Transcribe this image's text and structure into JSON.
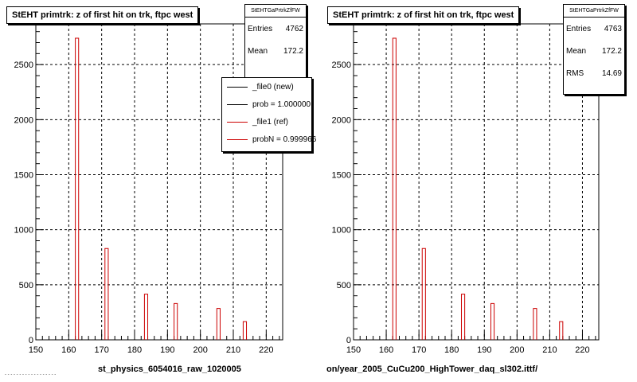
{
  "chart_data": [
    {
      "type": "bar",
      "title": "StEHT primtrk: z of first hit on trk, ftpc west",
      "xlabel": "st_physics_6054016_raw_1020005",
      "ylabel": "",
      "xlim": [
        150,
        225
      ],
      "ylim": [
        0,
        2870
      ],
      "xticks": [
        150,
        160,
        170,
        180,
        190,
        200,
        210,
        220
      ],
      "yticks": [
        0,
        500,
        1000,
        1500,
        2000,
        2500
      ],
      "grid": true,
      "series": [
        {
          "name": "_file1 (ref)",
          "color": "#cc0000",
          "x": [
            162.5,
            171.5,
            183.5,
            192.5,
            205.5,
            213.5
          ],
          "values": [
            2740,
            830,
            415,
            330,
            285,
            165
          ]
        }
      ],
      "stats": {
        "header": "StEHTGaPrtrkZfFW",
        "entries_label": "Entries",
        "entries": "4762",
        "mean_label": "Mean",
        "mean": "172.2"
      },
      "legend": [
        {
          "label": "_file0 (new)",
          "color": "#000000"
        },
        {
          "label": "prob = 1.000000",
          "color": "#000000"
        },
        {
          "label": "_file1 (ref)",
          "color": "#cc0000"
        },
        {
          "label": "probN = 0.999966",
          "color": "#cc0000"
        }
      ],
      "footnote": "- - - - - - - -  - - - - - - - - - -"
    },
    {
      "type": "bar",
      "title": "StEHT primtrk: z of first hit on trk, ftpc west",
      "xlabel": "on/year_2005_CuCu200_HighTower_daq_sl302.ittf/",
      "ylabel": "",
      "xlim": [
        150,
        225
      ],
      "ylim": [
        0,
        2870
      ],
      "xticks": [
        150,
        160,
        170,
        180,
        190,
        200,
        210,
        220
      ],
      "yticks": [
        0,
        500,
        1000,
        1500,
        2000,
        2500
      ],
      "grid": true,
      "series": [
        {
          "name": "",
          "color": "#cc0000",
          "x": [
            162.5,
            171.5,
            183.5,
            192.5,
            205.5,
            213.5
          ],
          "values": [
            2740,
            830,
            415,
            330,
            285,
            165
          ]
        }
      ],
      "stats": {
        "header": "StEHTGaPrtrkZfFW",
        "entries_label": "Entries",
        "entries": "4763",
        "mean_label": "Mean",
        "mean": "172.2",
        "rms_label": "RMS",
        "rms": "14.69"
      }
    }
  ]
}
